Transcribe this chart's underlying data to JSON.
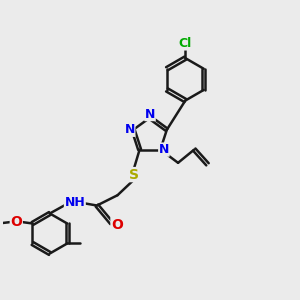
{
  "bg_color": "#ebebeb",
  "bond_color": "#1a1a1a",
  "bond_width": 1.8,
  "atom_colors": {
    "N": "#0000ee",
    "O": "#dd0000",
    "S": "#aaaa00",
    "Cl": "#00aa00",
    "C": "#1a1a1a",
    "H": "#444444"
  },
  "font_size": 9
}
